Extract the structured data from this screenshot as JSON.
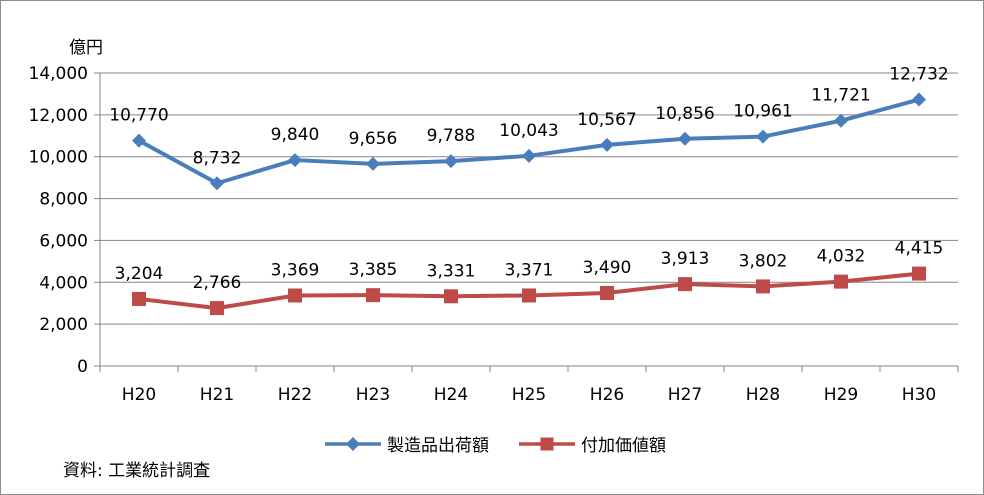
{
  "chart_data": {
    "type": "line",
    "title": "",
    "xlabel": "",
    "ylabel": "億円",
    "ylim": [
      0,
      14000
    ],
    "y_ticks": [
      0,
      2000,
      4000,
      6000,
      8000,
      10000,
      12000,
      14000
    ],
    "y_tick_labels": [
      "0",
      "2,000",
      "4,000",
      "6,000",
      "8,000",
      "10,000",
      "12,000",
      "14,000"
    ],
    "categories": [
      "H20",
      "H21",
      "H22",
      "H23",
      "H24",
      "H25",
      "H26",
      "H27",
      "H28",
      "H29",
      "H30"
    ],
    "series": [
      {
        "name": "製造品出荷額",
        "color": "#4a7ebb",
        "marker": "diamond",
        "values": [
          10770,
          8732,
          9840,
          9656,
          9788,
          10043,
          10567,
          10856,
          10961,
          11721,
          12732
        ],
        "labels": [
          "10,770",
          "8,732",
          "9,840",
          "9,656",
          "9,788",
          "10,043",
          "10,567",
          "10,856",
          "10,961",
          "11,721",
          "12,732"
        ]
      },
      {
        "name": "付加価値額",
        "color": "#be4b48",
        "marker": "square",
        "values": [
          3204,
          2766,
          3369,
          3385,
          3331,
          3371,
          3490,
          3913,
          3802,
          4032,
          4415
        ],
        "labels": [
          "3,204",
          "2,766",
          "3,369",
          "3,385",
          "3,331",
          "3,371",
          "3,490",
          "3,913",
          "3,802",
          "4,032",
          "4,415"
        ]
      }
    ],
    "grid": true,
    "legend_position": "bottom"
  },
  "source_note": "資料: 工業統計調査"
}
